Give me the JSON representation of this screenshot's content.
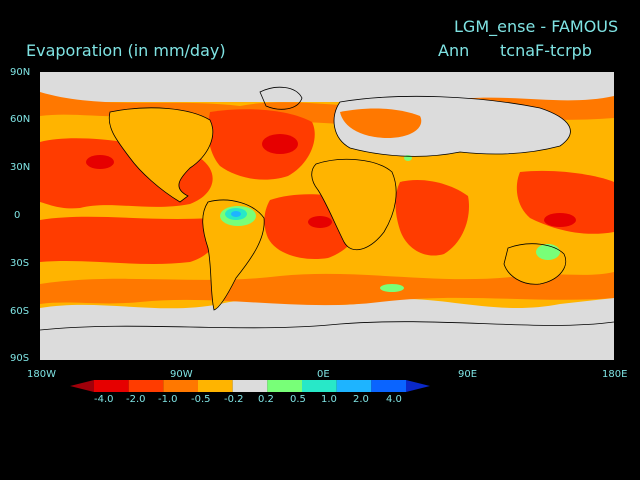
{
  "header": {
    "experiment_title": "LGM_ense - FAMOUS",
    "variable": "Evaporation (in mm/day)",
    "season": "Ann",
    "difference": "tcnaF-tcrpb"
  },
  "map_axes": {
    "lat_ticks": [
      "90N",
      "60N",
      "30N",
      "0",
      "30S",
      "60S",
      "90S"
    ],
    "lon_ticks": [
      "180W",
      "90W",
      "0E",
      "90E",
      "180E"
    ]
  },
  "legend": {
    "levels": [
      "-4.0",
      "-2.0",
      "-1.0",
      "-0.5",
      "-0.2",
      "0.2",
      "0.5",
      "1.0",
      "2.0",
      "4.0"
    ],
    "colors": [
      "#a0000a",
      "#e60000",
      "#ff3c00",
      "#ff7800",
      "#ffb400",
      "#dcdcdc",
      "#78ff78",
      "#28e8c8",
      "#1eb4ff",
      "#0a64ff",
      "#0a28c8"
    ]
  }
}
